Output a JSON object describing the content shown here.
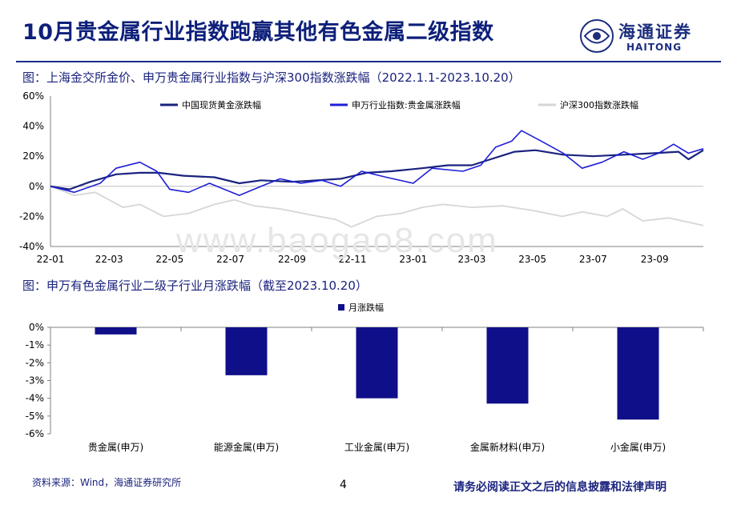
{
  "header": {
    "title": "10月贵金属行业指数跑赢其他有色金属二级指数",
    "logo_text": "海通证券",
    "logo_sub": "HAITONG"
  },
  "watermark": "www.baogao8.com",
  "footer": {
    "source": "资料来源：Wind，海通证券研究所",
    "page": "4",
    "disclaimer": "请务必阅读正文之后的信息披露和法律声明"
  },
  "colors": {
    "gold": "#1a237e",
    "sw": "#1f1fd6",
    "hs": "#d6d6d6",
    "bar": "#0f0f8a",
    "title": "#0d1f7a"
  },
  "chart_data": [
    {
      "type": "line",
      "title": "图：上海金交所金价、申万贵金属行业指数与沪深300指数涨跌幅（2022.1.1-2023.10.20）",
      "xlabel": "",
      "ylabel": "",
      "x_ticks": [
        "22-01",
        "22-03",
        "22-05",
        "22-07",
        "22-09",
        "22-11",
        "23-01",
        "23-03",
        "23-05",
        "23-07",
        "23-09"
      ],
      "y_ticks": [
        "60%",
        "40%",
        "20%",
        "0%",
        "-20%",
        "-40%"
      ],
      "ylim": [
        -40,
        60
      ],
      "legend_position": "top",
      "x_start": "2022-01-01",
      "x_end": "2023-10-20",
      "series": [
        {
          "name": "中国现货黄金涨跌幅",
          "points": [
            [
              "2022-01-01",
              0
            ],
            [
              "2022-01-20",
              -2
            ],
            [
              "2022-02-10",
              3
            ],
            [
              "2022-03-08",
              8
            ],
            [
              "2022-04-01",
              9
            ],
            [
              "2022-04-20",
              9
            ],
            [
              "2022-05-15",
              7
            ],
            [
              "2022-06-15",
              6
            ],
            [
              "2022-07-10",
              2
            ],
            [
              "2022-08-01",
              4
            ],
            [
              "2022-09-01",
              3
            ],
            [
              "2022-09-26",
              4
            ],
            [
              "2022-10-20",
              5
            ],
            [
              "2022-11-15",
              9
            ],
            [
              "2022-12-10",
              10
            ],
            [
              "2023-01-10",
              12
            ],
            [
              "2023-02-05",
              14
            ],
            [
              "2023-03-01",
              14
            ],
            [
              "2023-03-20",
              18
            ],
            [
              "2023-04-13",
              23
            ],
            [
              "2023-05-04",
              24
            ],
            [
              "2023-06-01",
              21
            ],
            [
              "2023-07-01",
              20
            ],
            [
              "2023-08-01",
              21
            ],
            [
              "2023-09-01",
              22
            ],
            [
              "2023-09-25",
              23
            ],
            [
              "2023-10-05",
              18
            ],
            [
              "2023-10-20",
              24
            ]
          ]
        },
        {
          "name": "申万行业指数:贵金属涨跌幅",
          "points": [
            [
              "2022-01-01",
              0
            ],
            [
              "2022-01-25",
              -4
            ],
            [
              "2022-02-20",
              2
            ],
            [
              "2022-03-08",
              12
            ],
            [
              "2022-04-01",
              16
            ],
            [
              "2022-04-18",
              10
            ],
            [
              "2022-05-01",
              -2
            ],
            [
              "2022-05-20",
              -4
            ],
            [
              "2022-06-10",
              2
            ],
            [
              "2022-07-10",
              -6
            ],
            [
              "2022-08-01",
              0
            ],
            [
              "2022-08-20",
              5
            ],
            [
              "2022-09-10",
              2
            ],
            [
              "2022-10-01",
              4
            ],
            [
              "2022-10-20",
              0
            ],
            [
              "2022-11-10",
              10
            ],
            [
              "2022-12-05",
              6
            ],
            [
              "2023-01-01",
              2
            ],
            [
              "2023-01-20",
              12
            ],
            [
              "2023-02-20",
              10
            ],
            [
              "2023-03-10",
              14
            ],
            [
              "2023-03-25",
              26
            ],
            [
              "2023-04-10",
              30
            ],
            [
              "2023-04-20",
              37
            ],
            [
              "2023-05-10",
              30
            ],
            [
              "2023-06-01",
              22
            ],
            [
              "2023-06-20",
              12
            ],
            [
              "2023-07-10",
              16
            ],
            [
              "2023-08-01",
              23
            ],
            [
              "2023-08-20",
              18
            ],
            [
              "2023-09-05",
              22
            ],
            [
              "2023-09-20",
              28
            ],
            [
              "2023-10-05",
              22
            ],
            [
              "2023-10-20",
              25
            ]
          ]
        },
        {
          "name": "沪深300指数涨跌幅",
          "points": [
            [
              "2022-01-01",
              0
            ],
            [
              "2022-01-25",
              -6
            ],
            [
              "2022-02-15",
              -4
            ],
            [
              "2022-03-15",
              -14
            ],
            [
              "2022-04-01",
              -12
            ],
            [
              "2022-04-25",
              -20
            ],
            [
              "2022-05-20",
              -18
            ],
            [
              "2022-06-15",
              -12
            ],
            [
              "2022-07-05",
              -9
            ],
            [
              "2022-07-25",
              -13
            ],
            [
              "2022-08-20",
              -15
            ],
            [
              "2022-09-20",
              -19
            ],
            [
              "2022-10-15",
              -22
            ],
            [
              "2022-10-31",
              -27
            ],
            [
              "2022-11-25",
              -20
            ],
            [
              "2022-12-20",
              -18
            ],
            [
              "2023-01-10",
              -14
            ],
            [
              "2023-01-31",
              -12
            ],
            [
              "2023-03-01",
              -14
            ],
            [
              "2023-04-01",
              -13
            ],
            [
              "2023-05-01",
              -16
            ],
            [
              "2023-05-31",
              -20
            ],
            [
              "2023-06-20",
              -17
            ],
            [
              "2023-07-15",
              -20
            ],
            [
              "2023-07-31",
              -15
            ],
            [
              "2023-08-20",
              -23
            ],
            [
              "2023-09-15",
              -21
            ],
            [
              "2023-10-20",
              -26
            ]
          ]
        }
      ]
    },
    {
      "type": "bar",
      "title": "图：申万有色金属行业二级子行业月涨跌幅（截至2023.10.20）",
      "xlabel": "",
      "ylabel": "",
      "categories": [
        "贵金属(申万)",
        "能源金属(申万)",
        "工业金属(申万)",
        "金属新材料(申万)",
        "小金属(申万)"
      ],
      "series": [
        {
          "name": "月涨跌幅",
          "values": [
            -0.4,
            -2.7,
            -4.0,
            -4.3,
            -5.2
          ]
        }
      ],
      "y_ticks": [
        "0%",
        "-1%",
        "-2%",
        "-3%",
        "-4%",
        "-5%",
        "-6%"
      ],
      "ylim": [
        -6,
        0
      ],
      "legend_position": "top"
    }
  ]
}
